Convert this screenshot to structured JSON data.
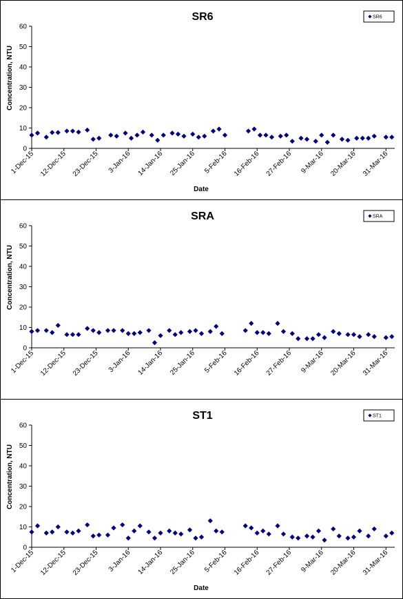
{
  "chart_data": [
    {
      "type": "scatter",
      "title": "SR6",
      "xlabel": "Date",
      "ylabel": "Concentration, NTU",
      "ylim": [
        0,
        60
      ],
      "yticks": [
        0,
        10,
        20,
        30,
        40,
        50,
        60
      ],
      "xlim": [
        "2015-12-01",
        "2016-04-03"
      ],
      "xtick_labels": [
        "1-Dec-15",
        "12-Dec-15",
        "23-Dec-15",
        "3-Jan-16",
        "14-Jan-16",
        "25-Jan-16",
        "5-Feb-16",
        "16-Feb-16",
        "27-Feb-16",
        "9-Mar-16",
        "20-Mar-16",
        "31-Mar-16"
      ],
      "xtick_dates": [
        "2015-12-01",
        "2015-12-12",
        "2015-12-23",
        "2016-01-03",
        "2016-01-14",
        "2016-01-25",
        "2016-02-05",
        "2016-02-16",
        "2016-02-27",
        "2016-03-09",
        "2016-03-20",
        "2016-03-31"
      ],
      "legend": "top-right",
      "grid": false,
      "marker_color": "#000080",
      "series": [
        {
          "name": "SR6",
          "x": [
            "2015-12-01",
            "2015-12-03",
            "2015-12-06",
            "2015-12-08",
            "2015-12-10",
            "2015-12-13",
            "2015-12-15",
            "2015-12-17",
            "2015-12-20",
            "2015-12-22",
            "2015-12-24",
            "2015-12-28",
            "2015-12-30",
            "2016-01-02",
            "2016-01-04",
            "2016-01-06",
            "2016-01-08",
            "2016-01-11",
            "2016-01-13",
            "2016-01-15",
            "2016-01-18",
            "2016-01-20",
            "2016-01-22",
            "2016-01-25",
            "2016-01-27",
            "2016-01-29",
            "2016-02-01",
            "2016-02-03",
            "2016-02-05",
            "2016-02-13",
            "2016-02-15",
            "2016-02-17",
            "2016-02-19",
            "2016-02-21",
            "2016-02-24",
            "2016-02-26",
            "2016-02-28",
            "2016-03-02",
            "2016-03-04",
            "2016-03-07",
            "2016-03-09",
            "2016-03-11",
            "2016-03-13",
            "2016-03-16",
            "2016-03-18",
            "2016-03-21",
            "2016-03-23",
            "2016-03-25",
            "2016-03-27",
            "2016-03-31",
            "2016-04-02"
          ],
          "y": [
            6.5,
            7.5,
            5.5,
            7.8,
            7.8,
            8.5,
            8.5,
            8.0,
            9.0,
            4.5,
            5.0,
            6.5,
            6.0,
            7.5,
            5.0,
            6.5,
            8.0,
            6.5,
            4.0,
            6.5,
            7.5,
            7.0,
            6.0,
            7.0,
            5.5,
            6.0,
            8.5,
            9.5,
            6.5,
            8.5,
            9.5,
            6.5,
            6.5,
            5.5,
            6.0,
            6.5,
            3.5,
            5.0,
            4.5,
            3.5,
            6.5,
            3.0,
            6.5,
            4.5,
            4.0,
            5.0,
            5.0,
            5.0,
            6.0,
            5.5,
            5.5
          ]
        }
      ]
    },
    {
      "type": "scatter",
      "title": "SRA",
      "xlabel": "",
      "ylabel": "Concentration, NTU",
      "ylim": [
        0,
        60
      ],
      "yticks": [
        0,
        10,
        20,
        30,
        40,
        50,
        60
      ],
      "xlim": [
        "2015-12-01",
        "2016-04-03"
      ],
      "xtick_labels": [
        "1-Dec-15",
        "12-Dec-15",
        "23-Dec-15",
        "3-Jan-16",
        "14-Jan-16",
        "25-Jan-16",
        "5-Feb-16",
        "16-Feb-16",
        "27-Feb-16",
        "9-Mar-16",
        "20-Mar-16",
        "31-Mar-16"
      ],
      "xtick_dates": [
        "2015-12-01",
        "2015-12-12",
        "2015-12-23",
        "2016-01-03",
        "2016-01-14",
        "2016-01-25",
        "2016-02-05",
        "2016-02-16",
        "2016-02-27",
        "2016-03-09",
        "2016-03-20",
        "2016-03-31"
      ],
      "legend": "top-right",
      "grid": false,
      "marker_color": "#000080",
      "series": [
        {
          "name": "SRA",
          "x": [
            "2015-12-01",
            "2015-12-03",
            "2015-12-06",
            "2015-12-08",
            "2015-12-10",
            "2015-12-13",
            "2015-12-15",
            "2015-12-17",
            "2015-12-20",
            "2015-12-22",
            "2015-12-24",
            "2015-12-27",
            "2015-12-29",
            "2016-01-01",
            "2016-01-03",
            "2016-01-05",
            "2016-01-07",
            "2016-01-10",
            "2016-01-12",
            "2016-01-14",
            "2016-01-17",
            "2016-01-19",
            "2016-01-21",
            "2016-01-24",
            "2016-01-26",
            "2016-01-28",
            "2016-01-31",
            "2016-02-02",
            "2016-02-04",
            "2016-02-12",
            "2016-02-14",
            "2016-02-16",
            "2016-02-18",
            "2016-02-20",
            "2016-02-23",
            "2016-02-25",
            "2016-02-28",
            "2016-03-01",
            "2016-03-04",
            "2016-03-06",
            "2016-03-08",
            "2016-03-10",
            "2016-03-13",
            "2016-03-15",
            "2016-03-18",
            "2016-03-20",
            "2016-03-22",
            "2016-03-25",
            "2016-03-27",
            "2016-03-31",
            "2016-04-02"
          ],
          "y": [
            8.0,
            8.5,
            8.5,
            7.5,
            11.0,
            6.5,
            6.5,
            6.5,
            9.5,
            8.5,
            7.5,
            8.5,
            8.5,
            8.5,
            7.0,
            7.0,
            7.5,
            8.5,
            2.5,
            6.0,
            8.5,
            6.5,
            7.5,
            8.0,
            8.5,
            7.0,
            8.0,
            10.5,
            7.0,
            8.5,
            12.0,
            7.5,
            7.5,
            7.0,
            12.0,
            8.0,
            7.0,
            4.5,
            4.5,
            4.5,
            6.5,
            5.0,
            8.0,
            7.0,
            6.5,
            6.5,
            5.5,
            6.5,
            5.5,
            5.0,
            5.5
          ]
        }
      ]
    },
    {
      "type": "scatter",
      "title": "ST1",
      "xlabel": "Date",
      "ylabel": "Concentration, NTU",
      "ylim": [
        0,
        60
      ],
      "yticks": [
        0,
        10,
        20,
        30,
        40,
        50,
        60
      ],
      "xlim": [
        "2015-12-01",
        "2016-04-03"
      ],
      "xtick_labels": [
        "1-Dec-15",
        "12-Dec-15",
        "23-Dec-15",
        "3-Jan-16",
        "14-Jan-16",
        "25-Jan-16",
        "5-Feb-16",
        "16-Feb-16",
        "27-Feb-16",
        "9-Mar-16",
        "20-Mar-16",
        "31-Mar-16"
      ],
      "xtick_dates": [
        "2015-12-01",
        "2015-12-12",
        "2015-12-23",
        "2016-01-03",
        "2016-01-14",
        "2016-01-25",
        "2016-02-05",
        "2016-02-16",
        "2016-02-27",
        "2016-03-09",
        "2016-03-20",
        "2016-03-31"
      ],
      "legend": "top-right",
      "grid": false,
      "marker_color": "#000080",
      "series": [
        {
          "name": "ST1",
          "x": [
            "2015-12-01",
            "2015-12-03",
            "2015-12-06",
            "2015-12-08",
            "2015-12-10",
            "2015-12-13",
            "2015-12-15",
            "2015-12-17",
            "2015-12-20",
            "2015-12-22",
            "2015-12-24",
            "2015-12-27",
            "2015-12-29",
            "2016-01-01",
            "2016-01-03",
            "2016-01-05",
            "2016-01-07",
            "2016-01-10",
            "2016-01-12",
            "2016-01-14",
            "2016-01-17",
            "2016-01-19",
            "2016-01-21",
            "2016-01-24",
            "2016-01-26",
            "2016-01-28",
            "2016-01-31",
            "2016-02-02",
            "2016-02-04",
            "2016-02-12",
            "2016-02-14",
            "2016-02-16",
            "2016-02-18",
            "2016-02-20",
            "2016-02-23",
            "2016-02-25",
            "2016-02-28",
            "2016-03-01",
            "2016-03-04",
            "2016-03-06",
            "2016-03-08",
            "2016-03-10",
            "2016-03-13",
            "2016-03-15",
            "2016-03-18",
            "2016-03-20",
            "2016-03-22",
            "2016-03-25",
            "2016-03-27",
            "2016-03-31",
            "2016-04-02"
          ],
          "y": [
            7.5,
            10.5,
            7.0,
            7.5,
            10.0,
            7.5,
            7.0,
            8.0,
            11.0,
            5.5,
            6.0,
            6.0,
            9.5,
            11.0,
            4.5,
            8.0,
            10.5,
            7.5,
            4.5,
            7.0,
            8.0,
            7.0,
            6.5,
            8.5,
            4.5,
            5.0,
            13.0,
            8.0,
            7.5,
            10.5,
            9.5,
            7.0,
            8.0,
            6.5,
            10.5,
            6.5,
            5.0,
            4.5,
            5.5,
            5.0,
            8.0,
            3.5,
            9.0,
            5.5,
            4.5,
            5.0,
            8.0,
            5.5,
            9.0,
            5.5,
            7.0
          ]
        }
      ]
    }
  ]
}
